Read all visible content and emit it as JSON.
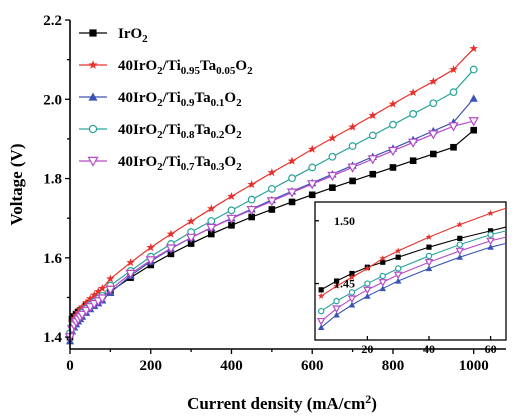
{
  "chart_data": [
    {
      "type": "line",
      "xlabel": "Current density (mA/cm²)",
      "ylabel": "Voltage (V)",
      "xlim": [
        0,
        1080
      ],
      "ylim": [
        1.37,
        2.2
      ],
      "xticks": [
        "0",
        "200",
        "400",
        "600",
        "800",
        "1000"
      ],
      "yticks": [
        "1.4",
        "1.6",
        "1.8",
        "2.0",
        "2.2"
      ],
      "legend_position": "top-left",
      "series": [
        {
          "name": "IrO2",
          "color": "#000000",
          "marker": "square",
          "x": [
            0,
            5,
            10,
            15,
            20,
            25,
            30,
            40,
            50,
            60,
            70,
            80,
            100,
            150,
            200,
            250,
            300,
            350,
            400,
            450,
            500,
            550,
            600,
            650,
            700,
            750,
            800,
            850,
            900,
            950,
            1000
          ],
          "y": [
            1.4,
            1.445,
            1.452,
            1.458,
            1.463,
            1.467,
            1.471,
            1.479,
            1.486,
            1.492,
            1.498,
            1.504,
            1.515,
            1.55,
            1.582,
            1.61,
            1.636,
            1.66,
            1.682,
            1.703,
            1.722,
            1.741,
            1.759,
            1.777,
            1.794,
            1.811,
            1.828,
            1.845,
            1.862,
            1.879,
            1.922
          ]
        },
        {
          "name": "40IrO2/Ti0.95Ta0.05O2",
          "color": "#e8302a",
          "marker": "star",
          "x": [
            0,
            5,
            10,
            15,
            20,
            25,
            30,
            40,
            50,
            60,
            70,
            80,
            100,
            150,
            200,
            250,
            300,
            350,
            400,
            450,
            500,
            550,
            600,
            650,
            700,
            750,
            800,
            850,
            900,
            950,
            1000
          ],
          "y": [
            1.41,
            1.44,
            1.448,
            1.455,
            1.462,
            1.47,
            1.476,
            1.487,
            1.497,
            1.506,
            1.515,
            1.523,
            1.547,
            1.588,
            1.626,
            1.66,
            1.692,
            1.724,
            1.755,
            1.785,
            1.815,
            1.844,
            1.874,
            1.902,
            1.93,
            1.959,
            1.988,
            2.017,
            2.045,
            2.075,
            2.128
          ]
        },
        {
          "name": "40IrO2/Ti0.9Ta0.1O2",
          "color": "#3a54b4",
          "marker": "triangle-up",
          "x": [
            0,
            5,
            10,
            15,
            20,
            25,
            30,
            40,
            50,
            60,
            70,
            80,
            100,
            150,
            200,
            250,
            300,
            350,
            400,
            450,
            500,
            550,
            600,
            650,
            700,
            750,
            800,
            850,
            900,
            950,
            1000
          ],
          "y": [
            1.39,
            1.415,
            1.425,
            1.433,
            1.44,
            1.446,
            1.452,
            1.462,
            1.471,
            1.479,
            1.486,
            1.493,
            1.512,
            1.555,
            1.591,
            1.623,
            1.651,
            1.676,
            1.7,
            1.723,
            1.746,
            1.768,
            1.789,
            1.811,
            1.833,
            1.855,
            1.876,
            1.898,
            1.92,
            1.942,
            2.002
          ]
        },
        {
          "name": "40IrO2/Ti0.8Ta0.2O2",
          "color": "#2aa39a",
          "marker": "circle-open",
          "x": [
            0,
            5,
            10,
            15,
            20,
            25,
            30,
            40,
            50,
            60,
            70,
            80,
            100,
            150,
            200,
            250,
            300,
            350,
            400,
            450,
            500,
            550,
            600,
            650,
            700,
            750,
            800,
            850,
            900,
            950,
            1000
          ],
          "y": [
            1.41,
            1.428,
            1.436,
            1.443,
            1.45,
            1.456,
            1.462,
            1.472,
            1.481,
            1.489,
            1.497,
            1.504,
            1.53,
            1.567,
            1.603,
            1.635,
            1.665,
            1.693,
            1.72,
            1.747,
            1.774,
            1.801,
            1.828,
            1.855,
            1.882,
            1.909,
            1.936,
            1.963,
            1.99,
            2.018,
            2.075
          ]
        },
        {
          "name": "40IrO2/Ti0.7Ta0.3O2",
          "color": "#b44ac8",
          "marker": "triangle-down-open",
          "x": [
            0,
            5,
            10,
            15,
            20,
            25,
            30,
            40,
            50,
            60,
            70,
            80,
            100,
            150,
            200,
            250,
            300,
            350,
            400,
            450,
            500,
            550,
            600,
            650,
            700,
            750,
            800,
            850,
            900,
            950,
            1000
          ],
          "y": [
            1.4,
            1.42,
            1.43,
            1.438,
            1.445,
            1.451,
            1.457,
            1.467,
            1.476,
            1.484,
            1.491,
            1.498,
            1.52,
            1.56,
            1.594,
            1.624,
            1.651,
            1.676,
            1.699,
            1.721,
            1.743,
            1.765,
            1.786,
            1.807,
            1.828,
            1.849,
            1.87,
            1.891,
            1.912,
            1.932,
            1.945
          ]
        }
      ]
    },
    {
      "type": "line",
      "inset": true,
      "xlim": [
        3,
        65
      ],
      "ylim": [
        1.405,
        1.515
      ],
      "xticks": [
        "20",
        "40",
        "60"
      ],
      "yticks": [
        "1.45",
        "1.50"
      ],
      "series": [
        {
          "name": "IrO2",
          "color": "#000000",
          "marker": "square",
          "x": [
            5,
            10,
            15,
            20,
            25,
            30,
            40,
            50,
            60,
            65
          ],
          "y": [
            1.445,
            1.452,
            1.458,
            1.463,
            1.467,
            1.471,
            1.479,
            1.486,
            1.492,
            1.495
          ]
        },
        {
          "name": "40IrO2/Ti0.95Ta0.05O2",
          "color": "#e8302a",
          "marker": "star",
          "x": [
            5,
            10,
            15,
            20,
            25,
            30,
            40,
            50,
            60,
            65
          ],
          "y": [
            1.44,
            1.448,
            1.455,
            1.462,
            1.47,
            1.476,
            1.487,
            1.497,
            1.506,
            1.51
          ]
        },
        {
          "name": "40IrO2/Ti0.9Ta0.1O2",
          "color": "#3a54b4",
          "marker": "triangle-up",
          "x": [
            5,
            10,
            15,
            20,
            25,
            30,
            40,
            50,
            60,
            65
          ],
          "y": [
            1.415,
            1.425,
            1.433,
            1.44,
            1.446,
            1.452,
            1.462,
            1.471,
            1.479,
            1.482
          ]
        },
        {
          "name": "40IrO2/Ti0.8Ta0.2O2",
          "color": "#2aa39a",
          "marker": "circle-open",
          "x": [
            5,
            10,
            15,
            20,
            25,
            30,
            40,
            50,
            60,
            65
          ],
          "y": [
            1.428,
            1.436,
            1.443,
            1.45,
            1.456,
            1.462,
            1.472,
            1.481,
            1.489,
            1.492
          ]
        },
        {
          "name": "40IrO2/Ti0.7Ta0.3O2",
          "color": "#b44ac8",
          "marker": "triangle-down-open",
          "x": [
            5,
            10,
            15,
            20,
            25,
            30,
            40,
            50,
            60,
            65
          ],
          "y": [
            1.42,
            1.43,
            1.438,
            1.445,
            1.451,
            1.457,
            1.467,
            1.476,
            1.484,
            1.487
          ]
        }
      ]
    }
  ],
  "legend": [
    {
      "series": "IrO2",
      "segments": [
        {
          "t": "IrO",
          "s": "n"
        },
        {
          "t": "2",
          "s": "sub"
        }
      ]
    },
    {
      "series": "40IrO2/Ti0.95Ta0.05O2",
      "segments": [
        {
          "t": "40IrO",
          "s": "n"
        },
        {
          "t": "2",
          "s": "sub"
        },
        {
          "t": "/Ti",
          "s": "n"
        },
        {
          "t": "0.95",
          "s": "sub"
        },
        {
          "t": "Ta",
          "s": "n"
        },
        {
          "t": "0.05",
          "s": "sub"
        },
        {
          "t": "O",
          "s": "n"
        },
        {
          "t": "2",
          "s": "sub"
        }
      ]
    },
    {
      "series": "40IrO2/Ti0.9Ta0.1O2",
      "segments": [
        {
          "t": "40IrO",
          "s": "n"
        },
        {
          "t": "2",
          "s": "sub"
        },
        {
          "t": "/Ti",
          "s": "n"
        },
        {
          "t": "0.9",
          "s": "sub"
        },
        {
          "t": "Ta",
          "s": "n"
        },
        {
          "t": "0.1",
          "s": "sub"
        },
        {
          "t": "O",
          "s": "n"
        },
        {
          "t": "2",
          "s": "sub"
        }
      ]
    },
    {
      "series": "40IrO2/Ti0.8Ta0.2O2",
      "segments": [
        {
          "t": "40IrO",
          "s": "n"
        },
        {
          "t": "2",
          "s": "sub"
        },
        {
          "t": "/Ti",
          "s": "n"
        },
        {
          "t": "0.8",
          "s": "sub"
        },
        {
          "t": "Ta",
          "s": "n"
        },
        {
          "t": "0.2",
          "s": "sub"
        },
        {
          "t": "O",
          "s": "n"
        },
        {
          "t": "2",
          "s": "sub"
        }
      ]
    },
    {
      "series": "40IrO2/Ti0.7Ta0.3O2",
      "segments": [
        {
          "t": "40IrO",
          "s": "n"
        },
        {
          "t": "2",
          "s": "sub"
        },
        {
          "t": "/Ti",
          "s": "n"
        },
        {
          "t": "0.7",
          "s": "sub"
        },
        {
          "t": "Ta",
          "s": "n"
        },
        {
          "t": "0.3",
          "s": "sub"
        },
        {
          "t": "O",
          "s": "n"
        },
        {
          "t": "2",
          "s": "sub"
        }
      ]
    }
  ],
  "axis_titles": {
    "x": [
      {
        "t": "Current density (mA/cm",
        "s": "n"
      },
      {
        "t": "2",
        "s": "sup"
      },
      {
        "t": ")",
        "s": "n"
      }
    ],
    "y": "Voltage (V)"
  }
}
